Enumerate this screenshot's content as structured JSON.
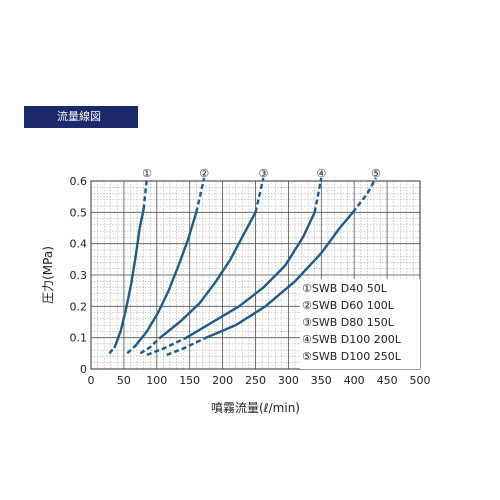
{
  "banner": {
    "title": "流量線図"
  },
  "chart_data": {
    "type": "line",
    "title": "",
    "xlabel": "噴霧流量(ℓ/min)",
    "ylabel": "圧力(MPa)",
    "xlim": [
      0,
      500
    ],
    "ylim": [
      0,
      0.6
    ],
    "x_ticks": [
      "0",
      "50",
      "100",
      "150",
      "200",
      "250",
      "300",
      "350",
      "400",
      "450",
      "500"
    ],
    "y_ticks": [
      "0",
      "0.1",
      "0.2",
      "0.3",
      "0.4",
      "0.5",
      "0.6"
    ],
    "grid": true,
    "legend_position": "bottom-right",
    "line_color": "#1e5a8c",
    "series": [
      {
        "name": "①SWB D40 50L",
        "marker": "①",
        "solid": [
          [
            36,
            0.07
          ],
          [
            45,
            0.12
          ],
          [
            53,
            0.19
          ],
          [
            61,
            0.27
          ],
          [
            68,
            0.36
          ],
          [
            74,
            0.45
          ],
          [
            80,
            0.51
          ]
        ],
        "dashed": [
          [
            28,
            0.05
          ],
          [
            36,
            0.07
          ],
          null,
          [
            80,
            0.51
          ],
          [
            85,
            0.61
          ]
        ]
      },
      {
        "name": "②SWB D60 100L",
        "marker": "②",
        "solid": [
          [
            68,
            0.075
          ],
          [
            85,
            0.12
          ],
          [
            102,
            0.18
          ],
          [
            118,
            0.25
          ],
          [
            133,
            0.33
          ],
          [
            147,
            0.41
          ],
          [
            160,
            0.5
          ]
        ],
        "dashed": [
          [
            55,
            0.05
          ],
          [
            68,
            0.075
          ],
          null,
          [
            160,
            0.5
          ],
          [
            172,
            0.61
          ]
        ]
      },
      {
        "name": "③SWB D80 150L",
        "marker": "③",
        "solid": [
          [
            105,
            0.1
          ],
          [
            135,
            0.15
          ],
          [
            165,
            0.21
          ],
          [
            190,
            0.28
          ],
          [
            212,
            0.35
          ],
          [
            232,
            0.43
          ],
          [
            250,
            0.5
          ]
        ],
        "dashed": [
          [
            75,
            0.05
          ],
          [
            90,
            0.07
          ],
          [
            105,
            0.1
          ],
          null,
          [
            250,
            0.5
          ],
          [
            262,
            0.61
          ]
        ]
      },
      {
        "name": "④SWB D100 200L",
        "marker": "④",
        "solid": [
          [
            145,
            0.1
          ],
          [
            185,
            0.15
          ],
          [
            225,
            0.2
          ],
          [
            262,
            0.26
          ],
          [
            295,
            0.33
          ],
          [
            322,
            0.42
          ],
          [
            340,
            0.5
          ]
        ],
        "dashed": [
          [
            85,
            0.045
          ],
          [
            110,
            0.065
          ],
          [
            145,
            0.1
          ],
          null,
          [
            340,
            0.5
          ],
          [
            350,
            0.61
          ]
        ]
      },
      {
        "name": "⑤SWB D100 250L",
        "marker": "⑤",
        "solid": [
          [
            175,
            0.1
          ],
          [
            220,
            0.14
          ],
          [
            265,
            0.2
          ],
          [
            310,
            0.28
          ],
          [
            350,
            0.37
          ],
          [
            378,
            0.45
          ],
          [
            398,
            0.5
          ]
        ],
        "dashed": [
          [
            115,
            0.045
          ],
          [
            140,
            0.065
          ],
          [
            175,
            0.1
          ],
          null,
          [
            398,
            0.5
          ],
          [
            420,
            0.56
          ],
          [
            433,
            0.61
          ]
        ]
      }
    ]
  }
}
